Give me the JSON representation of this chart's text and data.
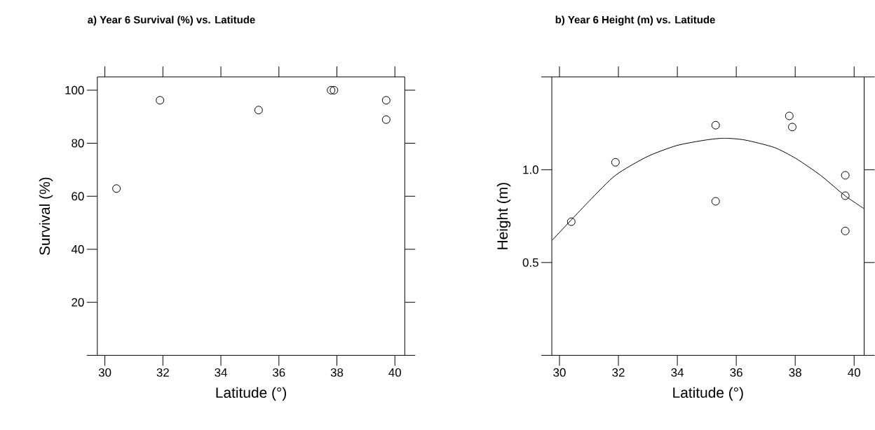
{
  "chart_data": [
    {
      "type": "scatter",
      "title": "a) Year 6 Survival (%) vs. Latitude",
      "xlabel": "Latitude (°)",
      "ylabel": "Survival (%)",
      "color": "#000000",
      "marker": "circle",
      "x": [
        30.4,
        31.9,
        35.3,
        37.8,
        37.9,
        39.7,
        39.7
      ],
      "values": [
        62.9,
        96.2,
        92.5,
        100,
        100,
        96.2,
        88.9
      ],
      "xlim": [
        29.74,
        40.34
      ],
      "ylim": [
        0,
        105
      ],
      "xticks": [
        30,
        32,
        34,
        36,
        38,
        40
      ],
      "yticks": [
        {
          "value": 0,
          "label": null
        },
        20,
        40,
        60,
        80,
        100
      ]
    },
    {
      "title": "b) Year 6 Height (m) vs. Latitude",
      "xlabel": "Latitude (°)",
      "ylabel": "Height (m)",
      "type": "scatter",
      "marker": "circle",
      "series": [
        {
          "type": "scatter",
          "color": "#000000",
          "x": [
            30.4,
            31.9,
            35.3,
            35.3,
            37.8,
            37.9,
            39.7,
            39.7,
            39.7
          ],
          "values": [
            0.72,
            1.04,
            1.24,
            0.83,
            1.29,
            1.23,
            0.97,
            0.86,
            0.67
          ]
        },
        {
          "type": "line",
          "color": "#000000",
          "marker": "none",
          "line_style": "solid",
          "x": [
            29.75,
            31.0,
            31.9,
            32.97,
            33.97,
            34.96,
            35.6,
            36.3,
            37.29,
            38.03,
            38.86,
            39.69,
            40.34
          ],
          "values": [
            0.62,
            0.83,
            0.97,
            1.07,
            1.13,
            1.16,
            1.17,
            1.16,
            1.12,
            1.06,
            0.97,
            0.86,
            0.79
          ]
        }
      ],
      "xlim": [
        29.74,
        40.34
      ],
      "ylim": [
        0,
        1.5
      ],
      "xticks": [
        30,
        32,
        34,
        36,
        38,
        40
      ],
      "yticks": [
        {
          "value": 0,
          "label": null
        },
        0.5,
        {
          "value": 1.0,
          "label": "1.0"
        },
        {
          "value": 1.5,
          "label": null
        }
      ]
    }
  ]
}
